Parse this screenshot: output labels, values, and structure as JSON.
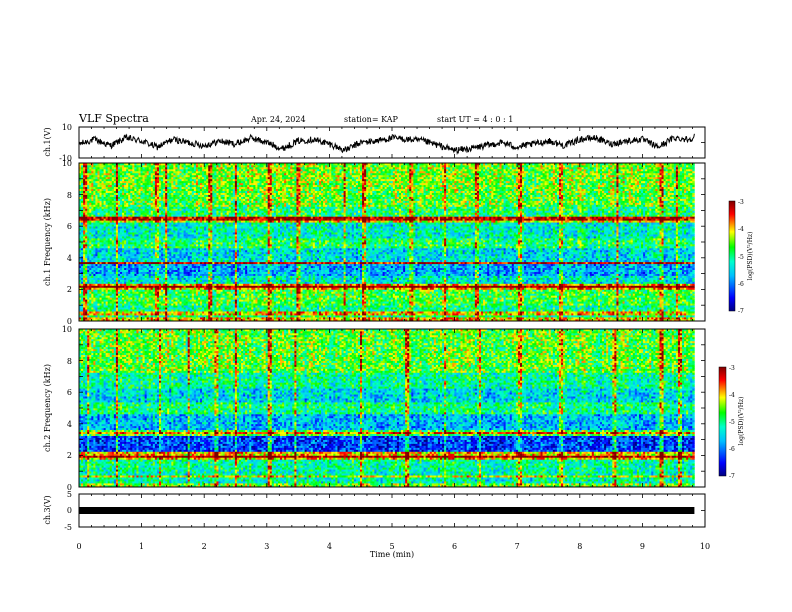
{
  "header": {
    "title": "VLF Spectra",
    "date": "Apr. 24, 2024",
    "station": "station= KAP",
    "start_ut": "start UT =  4 : 0 : 1"
  },
  "colors": {
    "waveform": "#000000",
    "colormap": [
      "#000080",
      "#0000ff",
      "#00bfff",
      "#00ffcc",
      "#00ff00",
      "#ffff00",
      "#ff0000",
      "#800000"
    ]
  },
  "chart_data": [
    {
      "type": "line",
      "name": "ch1-waveform",
      "ylabel": "ch.1(V)",
      "ylim": [
        -10,
        10
      ],
      "y_ticks": [
        "10",
        "-10"
      ],
      "xlim": [
        0,
        10
      ],
      "x": [
        0.0,
        0.25,
        0.5,
        0.75,
        1.0,
        1.25,
        1.5,
        1.75,
        2.0,
        2.25,
        2.5,
        2.75,
        3.0,
        3.25,
        3.5,
        3.75,
        4.0,
        4.25,
        4.5,
        4.75,
        5.0,
        5.25,
        5.5,
        5.75,
        6.0,
        6.25,
        6.5,
        6.75,
        7.0,
        7.25,
        7.5,
        7.75,
        8.0,
        8.25,
        8.5,
        8.75,
        9.0,
        9.25,
        9.5,
        9.75,
        9.83
      ],
      "y": [
        -1,
        2,
        -2,
        3,
        1,
        -3,
        2,
        0,
        -2,
        1,
        -1,
        3,
        0,
        -4,
        1,
        2,
        -1,
        -5,
        0,
        1,
        3,
        2,
        1,
        -2,
        -5,
        -4,
        -2,
        0,
        -3,
        -1,
        1,
        -2,
        2,
        3,
        -1,
        1,
        2,
        -3,
        3,
        2,
        4
      ]
    },
    {
      "type": "heatmap",
      "name": "ch1-spectrogram",
      "ylabel": "ch.1 Frequency (kHz)",
      "x_range_min": [
        0,
        9.83
      ],
      "ylim": [
        0,
        10
      ],
      "y_ticks": [
        "0",
        "2",
        "4",
        "6",
        "8",
        "10"
      ],
      "colorbar": {
        "label": "log(PSD)(V²/Hz)",
        "range": [
          -7,
          -3
        ],
        "ticks": [
          "-3",
          "-4",
          "-5",
          "-6",
          "-7"
        ]
      },
      "freq_bands_khz": [
        [
          0,
          0.3
        ],
        [
          0.3,
          1.0
        ],
        [
          1.0,
          2.0
        ],
        [
          2.0,
          2.4
        ],
        [
          2.4,
          2.9
        ],
        [
          2.9,
          3.6
        ],
        [
          3.6,
          3.8
        ],
        [
          3.8,
          4.6
        ],
        [
          4.6,
          5.2
        ],
        [
          5.2,
          6.2
        ],
        [
          6.2,
          6.6
        ],
        [
          6.6,
          7.2
        ],
        [
          7.2,
          8.3
        ],
        [
          8.3,
          10.0
        ]
      ],
      "band_log_psd": [
        -4.0,
        -5.0,
        -4.7,
        -3.9,
        -5.4,
        -5.8,
        -4.3,
        -5.5,
        -4.9,
        -5.3,
        -4.2,
        -4.9,
        -4.6,
        -4.5
      ],
      "strong_lines_khz": [
        2.2,
        3.7,
        6.5,
        0.5
      ],
      "bursts_min": [
        0.1,
        0.6,
        1.25,
        1.4,
        2.1,
        2.5,
        3.05,
        3.5,
        4.25,
        4.55,
        5.3,
        5.85,
        6.35,
        7.05,
        7.7,
        8.6,
        9.3,
        9.55
      ]
    },
    {
      "type": "heatmap",
      "name": "ch2-spectrogram",
      "ylabel": "ch.2 Frequency (kHz)",
      "x_range_min": [
        0,
        9.83
      ],
      "ylim": [
        0,
        10
      ],
      "y_ticks": [
        "0",
        "2",
        "4",
        "6",
        "8",
        "10"
      ],
      "colorbar": {
        "label": "log(PSD)(V²/Hz)",
        "range": [
          -7,
          -3
        ],
        "ticks": [
          "-3",
          "-4",
          "-5",
          "-6",
          "-7"
        ]
      },
      "freq_bands_khz": [
        [
          0,
          0.3
        ],
        [
          0.3,
          1.0
        ],
        [
          1.0,
          1.8
        ],
        [
          1.8,
          2.2
        ],
        [
          2.2,
          3.3
        ],
        [
          3.3,
          3.6
        ],
        [
          3.6,
          4.6
        ],
        [
          4.6,
          5.4
        ],
        [
          5.4,
          6.2
        ],
        [
          6.2,
          7.3
        ],
        [
          7.3,
          8.3
        ],
        [
          8.3,
          10.0
        ]
      ],
      "band_log_psd": [
        -4.5,
        -5.2,
        -5.1,
        -4.0,
        -6.3,
        -4.7,
        -5.7,
        -5.0,
        -5.5,
        -5.1,
        -4.6,
        -4.6
      ],
      "strong_lines_khz": [
        1.95,
        3.45,
        0.7
      ],
      "bursts_min": [
        0.15,
        0.6,
        1.3,
        1.75,
        2.2,
        2.5,
        3.05,
        3.45,
        4.5,
        5.25,
        5.85,
        6.4,
        7.05,
        7.7,
        8.55,
        9.3,
        9.6
      ]
    },
    {
      "type": "line",
      "name": "ch3-waveform",
      "ylabel": "ch.3(V)",
      "ylim": [
        -5,
        5
      ],
      "y_ticks": [
        "5",
        "0",
        "-5"
      ],
      "x": [
        0,
        9.83
      ],
      "y": [
        0,
        0
      ]
    }
  ],
  "x_axis": {
    "label": "Time  (min)",
    "range": [
      0,
      10
    ],
    "ticks": [
      "0",
      "1",
      "2",
      "3",
      "4",
      "5",
      "6",
      "7",
      "8",
      "9",
      "10"
    ]
  }
}
